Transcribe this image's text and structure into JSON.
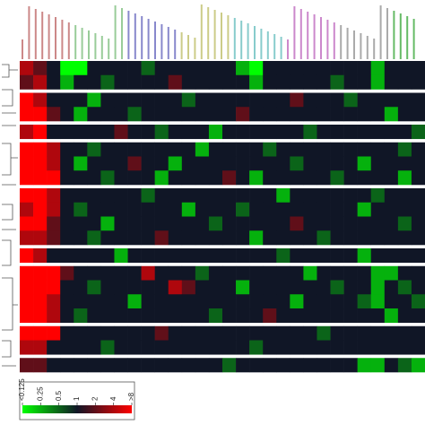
{
  "chart_data": {
    "type": "heatmap",
    "values": [
      [
        4,
        2,
        1,
        0.125,
        0.125,
        1,
        1,
        1,
        1,
        0.5,
        1,
        1,
        1,
        1,
        1,
        1,
        0.25,
        0.125,
        1,
        1,
        1,
        1,
        1,
        1,
        1,
        1,
        0.25,
        1,
        1,
        1
      ],
      [
        2,
        4,
        1,
        0.25,
        1,
        1,
        0.5,
        1,
        1,
        1,
        1,
        2,
        1,
        1,
        1,
        1,
        1,
        0.25,
        1,
        1,
        1,
        1,
        1,
        0.5,
        1,
        1,
        0.25,
        1,
        1,
        1
      ],
      null,
      [
        8,
        4,
        1,
        1,
        1,
        0.25,
        1,
        1,
        1,
        1,
        1,
        1,
        0.5,
        1,
        1,
        1,
        1,
        1,
        1,
        1,
        2,
        1,
        1,
        1,
        0.5,
        1,
        1,
        1,
        1,
        1
      ],
      [
        8,
        8,
        2,
        1,
        0.25,
        1,
        1,
        1,
        0.5,
        1,
        1,
        1,
        1,
        1,
        1,
        1,
        2,
        1,
        1,
        1,
        1,
        1,
        1,
        1,
        1,
        1,
        1,
        0.25,
        1,
        1
      ],
      null,
      [
        4,
        8,
        1,
        1,
        1,
        1,
        1,
        2,
        1,
        1,
        0.5,
        1,
        1,
        1,
        0.25,
        1,
        1,
        1,
        1,
        1,
        1,
        0.5,
        1,
        1,
        1,
        1,
        1,
        1,
        1,
        0.5
      ],
      null,
      [
        8,
        8,
        4,
        1,
        1,
        0.5,
        1,
        1,
        1,
        1,
        1,
        1,
        1,
        0.25,
        1,
        1,
        1,
        1,
        0.5,
        1,
        1,
        1,
        1,
        1,
        1,
        1,
        1,
        1,
        0.5,
        1
      ],
      [
        8,
        8,
        4,
        1,
        0.25,
        1,
        1,
        1,
        2,
        1,
        1,
        0.25,
        1,
        1,
        1,
        1,
        1,
        1,
        1,
        1,
        0.5,
        1,
        1,
        1,
        1,
        0.25,
        1,
        1,
        1,
        1
      ],
      [
        8,
        8,
        8,
        1,
        1,
        1,
        0.5,
        1,
        1,
        1,
        0.25,
        1,
        1,
        1,
        1,
        2,
        1,
        0.25,
        1,
        1,
        1,
        1,
        1,
        0.5,
        1,
        1,
        1,
        1,
        0.25,
        1
      ],
      null,
      [
        8,
        8,
        4,
        1,
        1,
        1,
        1,
        1,
        1,
        0.5,
        1,
        1,
        1,
        1,
        1,
        1,
        1,
        1,
        1,
        0.25,
        1,
        1,
        1,
        1,
        1,
        1,
        0.5,
        1,
        1,
        1
      ],
      [
        4,
        8,
        4,
        1,
        0.5,
        1,
        1,
        1,
        1,
        1,
        1,
        1,
        0.25,
        1,
        1,
        1,
        0.5,
        1,
        1,
        1,
        1,
        1,
        1,
        1,
        1,
        0.25,
        1,
        1,
        1,
        1
      ],
      [
        8,
        8,
        2,
        1,
        1,
        1,
        0.25,
        1,
        1,
        1,
        1,
        1,
        1,
        1,
        0.5,
        1,
        1,
        1,
        1,
        1,
        2,
        1,
        1,
        1,
        1,
        1,
        1,
        1,
        0.5,
        1
      ],
      [
        4,
        4,
        2,
        1,
        1,
        0.5,
        1,
        1,
        1,
        1,
        2,
        1,
        1,
        1,
        1,
        1,
        1,
        0.25,
        1,
        1,
        1,
        1,
        0.5,
        1,
        1,
        1,
        1,
        1,
        1,
        1
      ],
      null,
      [
        8,
        4,
        1,
        1,
        1,
        1,
        1,
        0.25,
        1,
        1,
        1,
        1,
        1,
        1,
        1,
        1,
        1,
        1,
        1,
        0.5,
        1,
        1,
        1,
        1,
        1,
        0.25,
        1,
        1,
        1,
        1
      ],
      null,
      [
        8,
        8,
        8,
        2,
        1,
        1,
        1,
        1,
        1,
        4,
        1,
        1,
        1,
        0.5,
        1,
        1,
        1,
        1,
        1,
        1,
        1,
        0.25,
        1,
        1,
        1,
        1,
        0.25,
        0.25,
        1,
        1
      ],
      [
        8,
        8,
        8,
        1,
        1,
        0.5,
        1,
        1,
        1,
        1,
        1,
        4,
        2,
        1,
        1,
        1,
        0.25,
        1,
        1,
        1,
        1,
        1,
        1,
        0.5,
        1,
        1,
        0.25,
        1,
        0.5,
        1
      ],
      [
        8,
        8,
        4,
        1,
        1,
        1,
        1,
        1,
        0.25,
        1,
        1,
        1,
        1,
        1,
        1,
        1,
        1,
        1,
        1,
        1,
        0.25,
        1,
        1,
        1,
        1,
        0.5,
        0.25,
        1,
        1,
        0.5
      ],
      [
        8,
        8,
        4,
        1,
        0.5,
        1,
        1,
        1,
        1,
        1,
        1,
        1,
        1,
        1,
        0.5,
        1,
        1,
        1,
        2,
        1,
        1,
        1,
        1,
        1,
        1,
        1,
        1,
        0.25,
        1,
        1
      ],
      null,
      [
        8,
        8,
        8,
        1,
        1,
        1,
        1,
        1,
        1,
        1,
        2,
        1,
        1,
        1,
        1,
        1,
        1,
        1,
        1,
        1,
        1,
        1,
        0.5,
        1,
        1,
        1,
        1,
        1,
        1,
        1
      ],
      [
        4,
        4,
        1,
        1,
        1,
        1,
        0.5,
        1,
        1,
        1,
        1,
        1,
        1,
        1,
        1,
        1,
        1,
        0.5,
        1,
        1,
        1,
        1,
        1,
        1,
        1,
        1,
        1,
        1,
        1,
        1
      ],
      null,
      [
        2,
        2,
        1,
        1,
        1,
        1,
        1,
        1,
        1,
        1,
        1,
        1,
        1,
        1,
        1,
        0.5,
        1,
        1,
        1,
        1,
        1,
        1,
        1,
        1,
        1,
        0.25,
        0.25,
        1,
        0.5,
        0.25
      ]
    ],
    "colorbar_ticks": [
      {
        "value": 0.125,
        "label": "<0.125"
      },
      0.25,
      0.5,
      1,
      2,
      4,
      {
        "value": 8,
        "label": ">8"
      }
    ],
    "low_color": "#00ff00",
    "mid_color": "#101626",
    "high_color": "#ff0000"
  }
}
